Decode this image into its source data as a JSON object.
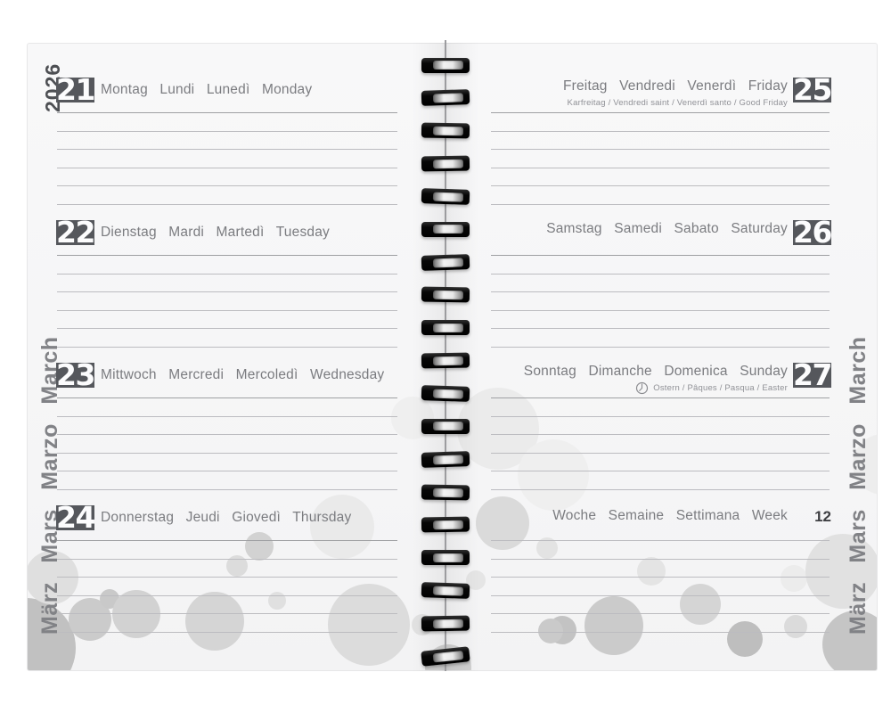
{
  "year": "2026",
  "margins": {
    "left_months": "März Mars Marzo March",
    "right_months": "März Mars Marzo March"
  },
  "left_page": {
    "days": [
      {
        "number": "21",
        "names": "Montag Lundi Lunedì Monday"
      },
      {
        "number": "22",
        "names": "Dienstag Mardi Martedì Tuesday"
      },
      {
        "number": "23",
        "names": "Mittwoch Mercredi Mercoledì Wednesday"
      },
      {
        "number": "24",
        "names": "Donnerstag Jeudi Giovedì Thursday"
      }
    ]
  },
  "right_page": {
    "days": [
      {
        "number": "25",
        "names": "Freitag Vendredi Venerdì Friday",
        "note": "Karfreitag / Vendredi saint / Venerdì santo / Good Friday"
      },
      {
        "number": "26",
        "names": "Samstag Samedi Sabato Saturday",
        "note": ""
      },
      {
        "number": "27",
        "names": "Sonntag Dimanche Domenica Sunday",
        "note": "Ostern / Pâques / Pasqua / Easter",
        "note_icon": "clock-icon"
      }
    ],
    "week_row": {
      "labels": "Woche Semaine Settimana Week",
      "number": "12"
    }
  },
  "colors": {
    "badge_bg": "#55575c",
    "badge_text": "#ffffff",
    "day_names": "#7b7c80",
    "holiday_notes": "#909196",
    "header_rule": "#9fa0a3",
    "ruled_line": "#bcbcc0",
    "margin_text": "#818286",
    "year_text": "#4d4f53",
    "week_number": "#3d3e42",
    "binding": "#0a0a0a"
  }
}
